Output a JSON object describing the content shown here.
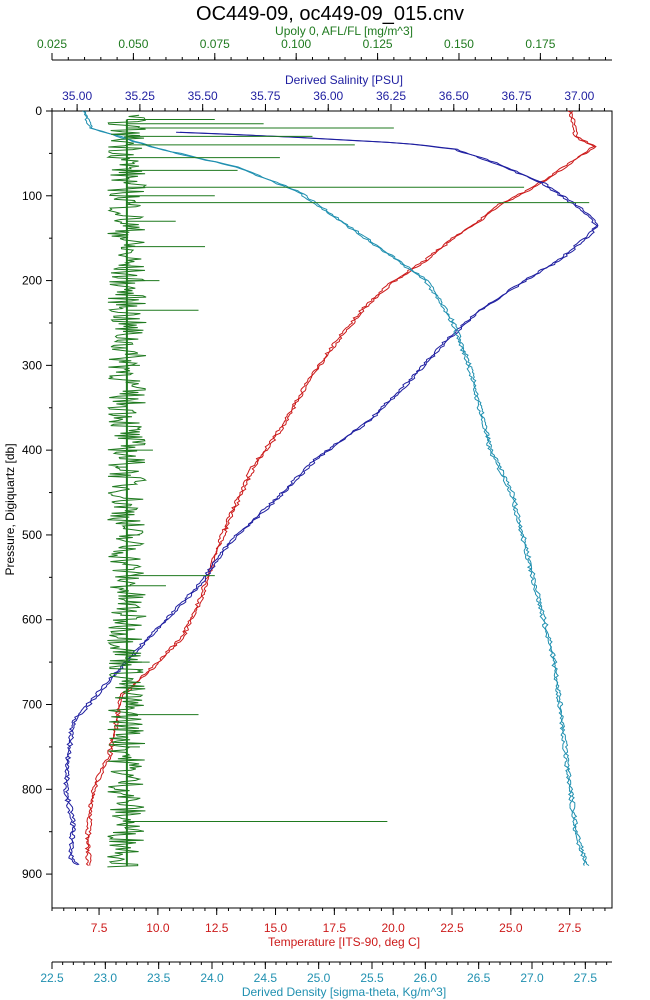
{
  "chart_data": {
    "type": "line",
    "title": "OC449-09, oc449-09_015.cnv",
    "colors": {
      "axis": "#000000",
      "fluorescence": "#1f7a1f",
      "salinity": "#1e1ea0",
      "temperature": "#cc1a1a",
      "density": "#2090b0"
    },
    "y_axis": {
      "label": "Pressure, Digiquartz [db]",
      "range": [
        0,
        940
      ],
      "reversed": true,
      "ticks": [
        0,
        100,
        200,
        300,
        400,
        500,
        600,
        700,
        800,
        900
      ]
    },
    "x_axes": [
      {
        "id": "fluorescence",
        "label": "Upoly 0, AFL/FL [mg/m^3]",
        "position": "top-outer",
        "range": [
          0.025,
          0.197
        ],
        "ticks": [
          "0.025",
          "0.050",
          "0.075",
          "0.100",
          "0.125",
          "0.150",
          "0.175"
        ]
      },
      {
        "id": "salinity",
        "label": "Derived Salinity [PSU]",
        "position": "top-inner",
        "range": [
          34.9,
          37.13
        ],
        "ticks": [
          "35.00",
          "35.25",
          "35.50",
          "35.75",
          "36.00",
          "36.25",
          "36.50",
          "36.75",
          "37.00"
        ]
      },
      {
        "id": "temperature",
        "label": "Temperature [ITS-90, deg C]",
        "position": "bottom-inner",
        "range": [
          5.5,
          29.3
        ],
        "ticks": [
          "7.5",
          "10.0",
          "12.5",
          "15.0",
          "17.5",
          "20.0",
          "22.5",
          "25.0",
          "27.5"
        ]
      },
      {
        "id": "density",
        "label": "Derived Density [sigma-theta, Kg/m^3]",
        "position": "bottom-outer",
        "range": [
          22.5,
          27.75
        ],
        "ticks": [
          "22.5",
          "23.0",
          "23.5",
          "24.0",
          "24.5",
          "25.0",
          "25.5",
          "26.0",
          "26.5",
          "27.0",
          "27.5"
        ]
      }
    ],
    "series": [
      {
        "id": "temperature",
        "axis": "temperature",
        "points": [
          [
            27.5,
            0
          ],
          [
            27.7,
            30
          ],
          [
            28.5,
            42
          ],
          [
            27.8,
            55
          ],
          [
            26.5,
            80
          ],
          [
            25.6,
            95
          ],
          [
            24.5,
            110
          ],
          [
            23.6,
            130
          ],
          [
            22.5,
            150
          ],
          [
            21.4,
            175
          ],
          [
            20.0,
            200
          ],
          [
            18.8,
            230
          ],
          [
            17.6,
            270
          ],
          [
            16.3,
            320
          ],
          [
            15.3,
            370
          ],
          [
            14.0,
            420
          ],
          [
            13.0,
            480
          ],
          [
            12.3,
            530
          ],
          [
            11.7,
            580
          ],
          [
            11.0,
            620
          ],
          [
            10.0,
            650
          ],
          [
            9.2,
            670
          ],
          [
            8.4,
            690
          ],
          [
            8.2,
            720
          ],
          [
            7.9,
            760
          ],
          [
            7.2,
            800
          ],
          [
            7.0,
            850
          ],
          [
            7.0,
            890
          ]
        ]
      },
      {
        "id": "salinity",
        "axis": "salinity",
        "points": [
          [
            35.4,
            25
          ],
          [
            35.8,
            30
          ],
          [
            36.3,
            38
          ],
          [
            36.5,
            45
          ],
          [
            36.65,
            60
          ],
          [
            36.85,
            85
          ],
          [
            37.0,
            115
          ],
          [
            37.07,
            135
          ],
          [
            37.02,
            150
          ],
          [
            36.92,
            175
          ],
          [
            36.78,
            200
          ],
          [
            36.6,
            235
          ],
          [
            36.47,
            270
          ],
          [
            36.33,
            315
          ],
          [
            36.18,
            360
          ],
          [
            35.95,
            410
          ],
          [
            35.78,
            460
          ],
          [
            35.6,
            510
          ],
          [
            35.48,
            560
          ],
          [
            35.35,
            600
          ],
          [
            35.22,
            640
          ],
          [
            35.1,
            680
          ],
          [
            34.98,
            720
          ],
          [
            34.96,
            760
          ],
          [
            34.95,
            800
          ],
          [
            34.98,
            840
          ],
          [
            34.97,
            880
          ],
          [
            35.0,
            890
          ]
        ]
      },
      {
        "id": "density",
        "axis": "density",
        "points": [
          [
            22.8,
            0
          ],
          [
            22.85,
            20
          ],
          [
            23.5,
            45
          ],
          [
            24.2,
            65
          ],
          [
            24.8,
            95
          ],
          [
            25.2,
            130
          ],
          [
            25.6,
            165
          ],
          [
            26.0,
            200
          ],
          [
            26.25,
            250
          ],
          [
            26.4,
            300
          ],
          [
            26.5,
            350
          ],
          [
            26.6,
            400
          ],
          [
            26.8,
            450
          ],
          [
            26.9,
            500
          ],
          [
            27.0,
            550
          ],
          [
            27.1,
            600
          ],
          [
            27.2,
            650
          ],
          [
            27.25,
            700
          ],
          [
            27.3,
            750
          ],
          [
            27.35,
            800
          ],
          [
            27.4,
            850
          ],
          [
            27.5,
            890
          ]
        ]
      },
      {
        "id": "fluorescence",
        "axis": "fluorescence",
        "baseline": 0.048,
        "jitter": 0.006,
        "points": [
          [
            0.075,
            10
          ],
          [
            0.09,
            15
          ],
          [
            0.13,
            20
          ],
          [
            0.105,
            30
          ],
          [
            0.118,
            40
          ],
          [
            0.095,
            55
          ],
          [
            0.082,
            70
          ],
          [
            0.17,
            90
          ],
          [
            0.075,
            100
          ],
          [
            0.19,
            108
          ],
          [
            0.063,
            130
          ],
          [
            0.072,
            160
          ],
          [
            0.058,
            200
          ],
          [
            0.07,
            235
          ],
          [
            0.052,
            300
          ],
          [
            0.056,
            400
          ],
          [
            0.045,
            420
          ],
          [
            0.052,
            500
          ],
          [
            0.075,
            548
          ],
          [
            0.06,
            560
          ],
          [
            0.055,
            650
          ],
          [
            0.07,
            712
          ],
          [
            0.052,
            750
          ],
          [
            0.128,
            838
          ],
          [
            0.052,
            860
          ],
          [
            0.048,
            890
          ]
        ]
      }
    ]
  }
}
